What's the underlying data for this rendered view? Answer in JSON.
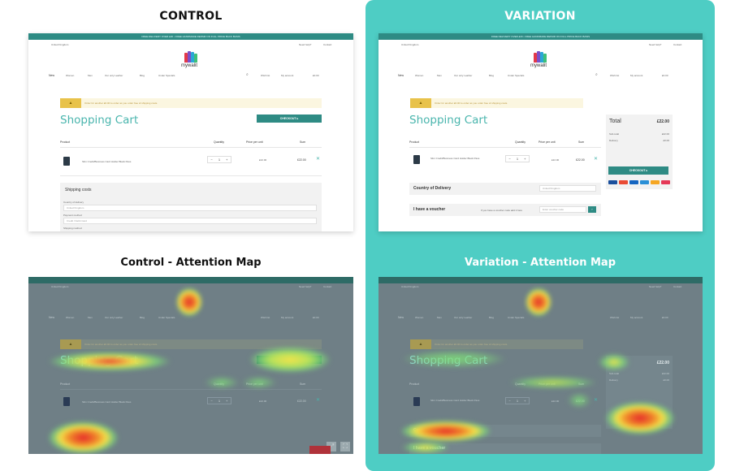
{
  "headings": {
    "control": "CONTROL",
    "variation": "VARIATION",
    "control_map": "Control - Attention Map",
    "variation_map": "Variation - Attention Map"
  },
  "site": {
    "topbar": "FREE DELIVERY OVER £20  •  FREE HANDMADE REPAIR ON FULL PRICE BACK BASIS",
    "country": "United Kingdom",
    "header_links": [
      "Need help?",
      "Contact"
    ],
    "logo_text": "mywalit",
    "logo_colors": [
      "#e2394a",
      "#7a4fc9",
      "#2aa7d6",
      "#3ec07a"
    ],
    "nav": [
      "New",
      "Women",
      "Men",
      "Our only Leather",
      "Blog",
      "Under Specials"
    ],
    "nav_right": [
      "Wish list",
      "My account",
      "£0.00"
    ]
  },
  "control": {
    "notice_tag": "▲",
    "notice_label": "FREE OF SHIPPING COSTS",
    "notice_text": "Order for another £0.00 to order as you order free of shipping costs.",
    "title": "Shopping Cart",
    "checkout": "CHECKOUT ▸",
    "columns": [
      "Product",
      "Quantity",
      "Price per unit",
      "Sum"
    ],
    "item": {
      "name": "Slim Credit/Business Card Holder Black Pass",
      "qty": "1",
      "price": "£22.00",
      "sum": "£22.00"
    },
    "shipping_title": "Shipping costs",
    "shipping_fields": [
      "Country of delivery",
      "United Kingdom",
      "Payment method",
      "Credit / Debit Card",
      "Shipping method"
    ]
  },
  "variation": {
    "notice_tag": "▲",
    "notice_label": "FREE OF SHIPPING COSTS",
    "notice_text": "Order for another £0.00 to order as you order free of shipping costs.",
    "title": "Shopping Cart",
    "columns": [
      "Product",
      "Quantity",
      "Price per unit",
      "Sum"
    ],
    "item": {
      "name": "Slim Credit/Business Card Holder Black Pass",
      "qty": "1",
      "price": "£22.00",
      "sum": "£22.00"
    },
    "country_label": "Country of Delivery",
    "country_value": "United Kingdom",
    "voucher_label": "I have a voucher",
    "voucher_hint": "If you have a voucher code add it here",
    "voucher_placeholder": "Enter voucher code",
    "summary": {
      "total_label": "Total",
      "total_value": "£22.00",
      "subtotal_label": "Sub-total",
      "subtotal_value": "£22.00",
      "delivery_label": "Delivery",
      "delivery_value": "£0.00",
      "checkout": "CHECKOUT ▸",
      "payment_colors": [
        "#1a4f9c",
        "#e94b35",
        "#1565c0",
        "#2a8fd6",
        "#f5a623",
        "#e0e0e0",
        "#e53957"
      ]
    }
  },
  "colors": {
    "teal": "#2e8b84",
    "panel": "#4ecdc4",
    "title": "#49b5ad",
    "heat_red": "#e5242b",
    "heat_yellow": "#f4e34a",
    "heat_green": "#7fdc7a"
  }
}
